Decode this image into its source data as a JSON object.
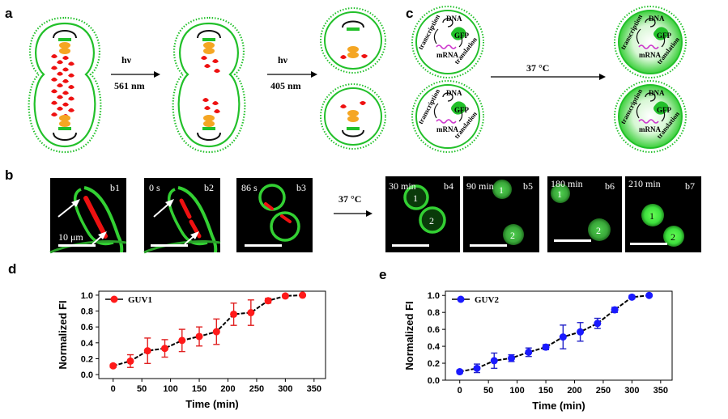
{
  "panels": {
    "a": "a",
    "b": "b",
    "c": "c",
    "d": "d",
    "e": "e"
  },
  "panel_a": {
    "step1_label": "hν",
    "step1_wavelength": "561 nm",
    "step2_label": "hν",
    "step2_wavelength": "405 nm"
  },
  "panel_c": {
    "dna": "DNA",
    "gfp": "GFP",
    "mrna": "mRNA",
    "transcription": "transcription",
    "translation": "translation",
    "temperature": "37 °C"
  },
  "panel_b": {
    "temperature": "37 °C",
    "scale_bar": "10 μm",
    "tiles": [
      {
        "id": "b1",
        "time": ""
      },
      {
        "id": "b2",
        "time": "0 s"
      },
      {
        "id": "b3",
        "time": "86 s"
      },
      {
        "id": "b4",
        "time": "30 min"
      },
      {
        "id": "b5",
        "time": "90 min"
      },
      {
        "id": "b6",
        "time": "180 min"
      },
      {
        "id": "b7",
        "time": "210 min"
      }
    ],
    "vesicle_labels": [
      "1",
      "2"
    ]
  },
  "colors": {
    "green": "#22c02a",
    "red": "#ee1111",
    "orange": "#f5a623",
    "series_d": "#ff1a1a",
    "series_d_err": "#e02020",
    "series_e": "#1a1aff",
    "series_e_err": "#2020c8"
  },
  "chart_data": [
    {
      "type": "line",
      "panel": "d",
      "xlabel": "Time (min)",
      "ylabel": "Normalized FI",
      "xlim": [
        -25,
        370
      ],
      "ylim": [
        -0.05,
        1.05
      ],
      "xticks": [
        0,
        50,
        100,
        150,
        200,
        250,
        300,
        350
      ],
      "yticks": [
        0.0,
        0.2,
        0.4,
        0.6,
        0.8,
        1.0
      ],
      "legend": "top-left",
      "series": [
        {
          "name": "GUV1",
          "x": [
            0,
            30,
            60,
            90,
            120,
            150,
            180,
            210,
            240,
            270,
            300,
            330
          ],
          "y": [
            0.11,
            0.17,
            0.3,
            0.33,
            0.43,
            0.48,
            0.54,
            0.76,
            0.78,
            0.93,
            0.99,
            1.0
          ],
          "err": [
            0.02,
            0.08,
            0.16,
            0.11,
            0.14,
            0.12,
            0.16,
            0.14,
            0.16,
            0.03,
            0.02,
            0.01
          ]
        }
      ]
    },
    {
      "type": "line",
      "panel": "e",
      "xlabel": "Time (min)",
      "ylabel": "Normalized FI",
      "xlim": [
        -25,
        370
      ],
      "ylim": [
        0.0,
        1.05
      ],
      "xticks": [
        0,
        50,
        100,
        150,
        200,
        250,
        300,
        350
      ],
      "yticks": [
        0.0,
        0.2,
        0.4,
        0.6,
        0.8,
        1.0
      ],
      "legend": "top-left",
      "series": [
        {
          "name": "GUV2",
          "x": [
            0,
            30,
            60,
            90,
            120,
            150,
            180,
            210,
            240,
            270,
            300,
            330
          ],
          "y": [
            0.1,
            0.14,
            0.23,
            0.26,
            0.33,
            0.39,
            0.51,
            0.57,
            0.67,
            0.83,
            0.98,
            1.0
          ],
          "err": [
            0.02,
            0.05,
            0.09,
            0.04,
            0.05,
            0.03,
            0.14,
            0.11,
            0.06,
            0.03,
            0.02,
            0.01
          ]
        }
      ]
    }
  ]
}
